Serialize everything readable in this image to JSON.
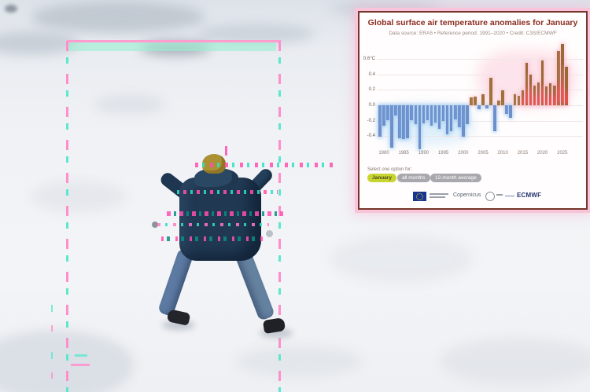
{
  "chart": {
    "title": "Global surface air temperature anomalies for January",
    "subtitle": "Data source: ERA5 • Reference period: 1991–2020 • Credit: C3S/ECMWF",
    "controls": {
      "label": "Select one option for:",
      "options": [
        {
          "label": "January",
          "selected": true
        },
        {
          "label": "all months",
          "selected": false
        },
        {
          "label": "12-month average",
          "selected": false
        }
      ]
    },
    "logos": {
      "eu_flag": "eu-flag-logo",
      "copernicus": "Copernicus",
      "ecmwf": "ECMWF"
    },
    "colors": {
      "title": "#8a2c1f",
      "negative_bar": "#6f8fcb",
      "positive_bar_early": "#a0713a",
      "positive_bar_red": "#dd5347",
      "positive_bar_cap": "#9c6833",
      "selected_pill": "#c8d531",
      "unselected_pill": "#a9a9ad",
      "border": "#76352a",
      "frame": "#f8c4da"
    }
  },
  "chart_data": {
    "type": "bar",
    "title": "Global surface air temperature anomalies for January",
    "xlabel": "",
    "ylabel": "°C",
    "ylim": [
      -0.65,
      0.85
    ],
    "grid": true,
    "years": [
      1979,
      1980,
      1981,
      1982,
      1983,
      1984,
      1985,
      1986,
      1987,
      1988,
      1989,
      1990,
      1991,
      1992,
      1993,
      1994,
      1995,
      1996,
      1997,
      1998,
      1999,
      2000,
      2001,
      2002,
      2003,
      2004,
      2005,
      2006,
      2007,
      2008,
      2009,
      2010,
      2011,
      2012,
      2013,
      2014,
      2015,
      2016,
      2017,
      2018,
      2019,
      2020,
      2021,
      2022,
      2023,
      2024,
      2025,
      2026
    ],
    "values": [
      -0.41,
      -0.26,
      -0.19,
      -0.55,
      -0.13,
      -0.43,
      -0.44,
      -0.43,
      -0.19,
      -0.24,
      -0.57,
      -0.23,
      -0.19,
      -0.26,
      -0.22,
      -0.3,
      -0.2,
      -0.38,
      -0.33,
      -0.18,
      -0.28,
      -0.41,
      -0.24,
      0.1,
      0.11,
      -0.05,
      0.14,
      -0.04,
      0.36,
      -0.33,
      0.06,
      0.19,
      -0.11,
      -0.16,
      0.14,
      0.12,
      0.19,
      0.55,
      0.4,
      0.25,
      0.29,
      0.58,
      0.24,
      0.28,
      0.25,
      0.7,
      0.79,
      0.5
    ],
    "yticks": [
      {
        "label": "0.6°C",
        "value": 0.6
      },
      {
        "label": "0.4",
        "value": 0.4
      },
      {
        "label": "0.2",
        "value": 0.2
      },
      {
        "label": "0.0",
        "value": 0.0
      },
      {
        "label": "-0.2",
        "value": -0.2
      },
      {
        "label": "-0.4",
        "value": -0.4
      }
    ],
    "xticks": [
      1980,
      1985,
      1990,
      1995,
      2000,
      2005,
      2010,
      2015,
      2020,
      2025
    ]
  }
}
